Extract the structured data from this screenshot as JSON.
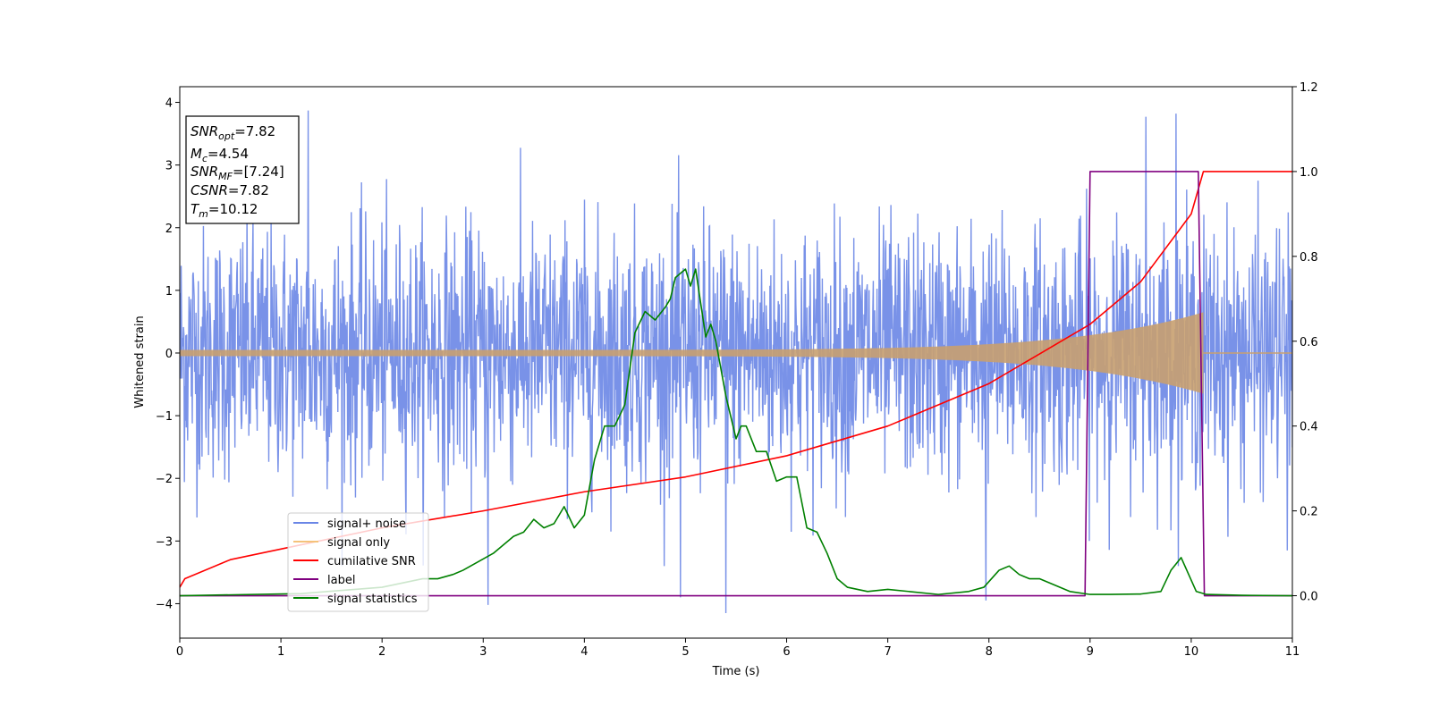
{
  "chart_data": {
    "type": "line",
    "xlabel": "Time (s)",
    "ylabel": "Whitened strain",
    "xlim": [
      0,
      11
    ],
    "ylim": [
      -4.55,
      4.25
    ],
    "y2lim": [
      -0.1,
      1.2
    ],
    "x_ticks": [
      0,
      1,
      2,
      3,
      4,
      5,
      6,
      7,
      8,
      9,
      10,
      11
    ],
    "y_ticks": [
      -4,
      -3,
      -2,
      -1,
      0,
      1,
      2,
      3,
      4
    ],
    "y2_ticks": [
      0.0,
      0.2,
      0.4,
      0.6,
      0.8,
      1.0,
      1.2
    ],
    "legend_position": "lower-left",
    "legend": [
      {
        "label": "signal+ noise",
        "color": "#6a86e6"
      },
      {
        "label": "signal only",
        "color": "#f5c27a"
      },
      {
        "label": "cumilative SNR",
        "color": "#ff0000"
      },
      {
        "label": "label",
        "color": "#800080"
      },
      {
        "label": "signal statistics",
        "color": "#008000"
      }
    ],
    "annotation": {
      "lines": [
        {
          "base": "SNR",
          "sub": "opt",
          "rest": "=7.82"
        },
        {
          "base": "M",
          "sub": "c",
          "rest": "=4.54"
        },
        {
          "base": "SNR",
          "sub": "MF",
          "rest": "=[7.24]"
        },
        {
          "base": "CSNR",
          "sub": "",
          "rest": "=7.82"
        },
        {
          "base": "T",
          "sub": "m",
          "rest": "=10.12"
        }
      ]
    },
    "series": [
      {
        "name": "signal+ noise",
        "axis": "left",
        "style": "noise",
        "color": "#6a86e6",
        "x_range": [
          0,
          11
        ],
        "sigma": 1.0,
        "spikes": [
          [
            1.27,
            3.87
          ],
          [
            9.85,
            3.82
          ],
          [
            9.55,
            3.77
          ],
          [
            5.4,
            -4.15
          ],
          [
            3.05,
            -4.02
          ],
          [
            4.95,
            -3.9
          ],
          [
            7.97,
            -3.95
          ],
          [
            10.95,
            -3.15
          ]
        ]
      },
      {
        "name": "signal only",
        "axis": "left",
        "style": "chirp",
        "color": "#c8a070",
        "x_range": [
          0,
          10.12
        ],
        "amplitude_start": 0.05,
        "amplitude_end": 0.65
      },
      {
        "name": "cumilative SNR",
        "axis": "right",
        "color": "#ff0000",
        "x": [
          0,
          0.05,
          0.5,
          1,
          2,
          3,
          4,
          5,
          6,
          7,
          8,
          8.5,
          9,
          9.5,
          10,
          10.12,
          11
        ],
        "y": [
          0.02,
          0.04,
          0.085,
          0.11,
          0.16,
          0.2,
          0.245,
          0.28,
          0.33,
          0.4,
          0.5,
          0.57,
          0.64,
          0.74,
          0.9,
          1.0,
          1.0
        ]
      },
      {
        "name": "label",
        "axis": "right",
        "color": "#800080",
        "x": [
          0,
          8.95,
          9.0,
          10.07,
          10.13,
          11
        ],
        "y": [
          0.0,
          0.0,
          1.0,
          1.0,
          0.0,
          0.0
        ]
      },
      {
        "name": "signal statistics",
        "axis": "right",
        "color": "#008000",
        "x": [
          0,
          1.2,
          2.0,
          2.4,
          2.55,
          2.7,
          2.8,
          2.95,
          3.1,
          3.2,
          3.3,
          3.4,
          3.5,
          3.6,
          3.7,
          3.8,
          3.9,
          4.0,
          4.1,
          4.2,
          4.3,
          4.4,
          4.5,
          4.6,
          4.7,
          4.8,
          4.85,
          4.9,
          5.0,
          5.05,
          5.1,
          5.2,
          5.25,
          5.3,
          5.4,
          5.5,
          5.55,
          5.6,
          5.7,
          5.8,
          5.9,
          6.0,
          6.1,
          6.2,
          6.3,
          6.4,
          6.5,
          6.6,
          6.8,
          7.0,
          7.5,
          7.8,
          7.95,
          8.1,
          8.2,
          8.3,
          8.4,
          8.5,
          8.6,
          8.8,
          9.0,
          9.2,
          9.5,
          9.7,
          9.8,
          9.9,
          10.05,
          10.15,
          10.5,
          11
        ],
        "y": [
          0.0,
          0.005,
          0.02,
          0.04,
          0.04,
          0.05,
          0.06,
          0.08,
          0.1,
          0.12,
          0.14,
          0.15,
          0.18,
          0.16,
          0.17,
          0.21,
          0.16,
          0.19,
          0.32,
          0.4,
          0.4,
          0.45,
          0.62,
          0.67,
          0.65,
          0.68,
          0.7,
          0.75,
          0.77,
          0.73,
          0.77,
          0.61,
          0.64,
          0.6,
          0.47,
          0.37,
          0.4,
          0.4,
          0.34,
          0.34,
          0.27,
          0.28,
          0.28,
          0.16,
          0.15,
          0.1,
          0.04,
          0.02,
          0.01,
          0.015,
          0.003,
          0.01,
          0.02,
          0.06,
          0.07,
          0.05,
          0.04,
          0.04,
          0.03,
          0.01,
          0.003,
          0.003,
          0.004,
          0.01,
          0.06,
          0.09,
          0.01,
          0.003,
          0.001,
          0.0
        ]
      }
    ]
  }
}
